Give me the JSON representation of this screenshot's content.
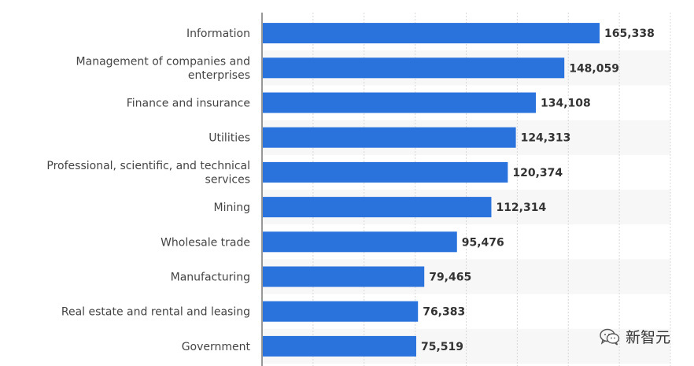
{
  "chart_data": {
    "type": "bar",
    "orientation": "horizontal",
    "categories": [
      [
        "Information"
      ],
      [
        "Management of companies and",
        "enterprises"
      ],
      [
        "Finance and insurance"
      ],
      [
        "Utilities"
      ],
      [
        "Professional, scientific, and technical",
        "services"
      ],
      [
        "Mining"
      ],
      [
        "Wholesale trade"
      ],
      [
        "Manufacturing"
      ],
      [
        "Real estate and rental and leasing"
      ],
      [
        "Government"
      ]
    ],
    "values": [
      165338,
      148059,
      134108,
      124313,
      120374,
      112314,
      95476,
      79465,
      76383,
      75519
    ],
    "value_labels": [
      "165,338",
      "148,059",
      "134,108",
      "124,313",
      "120,374",
      "112,314",
      "95,476",
      "79,465",
      "76,383",
      "75,519"
    ],
    "xlim": [
      0,
      200000
    ],
    "grid": true,
    "bar_color": "#2a72dc",
    "title": "",
    "xlabel": "",
    "ylabel": ""
  },
  "watermark": {
    "text": "新智元",
    "icon": "wechat-icon"
  }
}
